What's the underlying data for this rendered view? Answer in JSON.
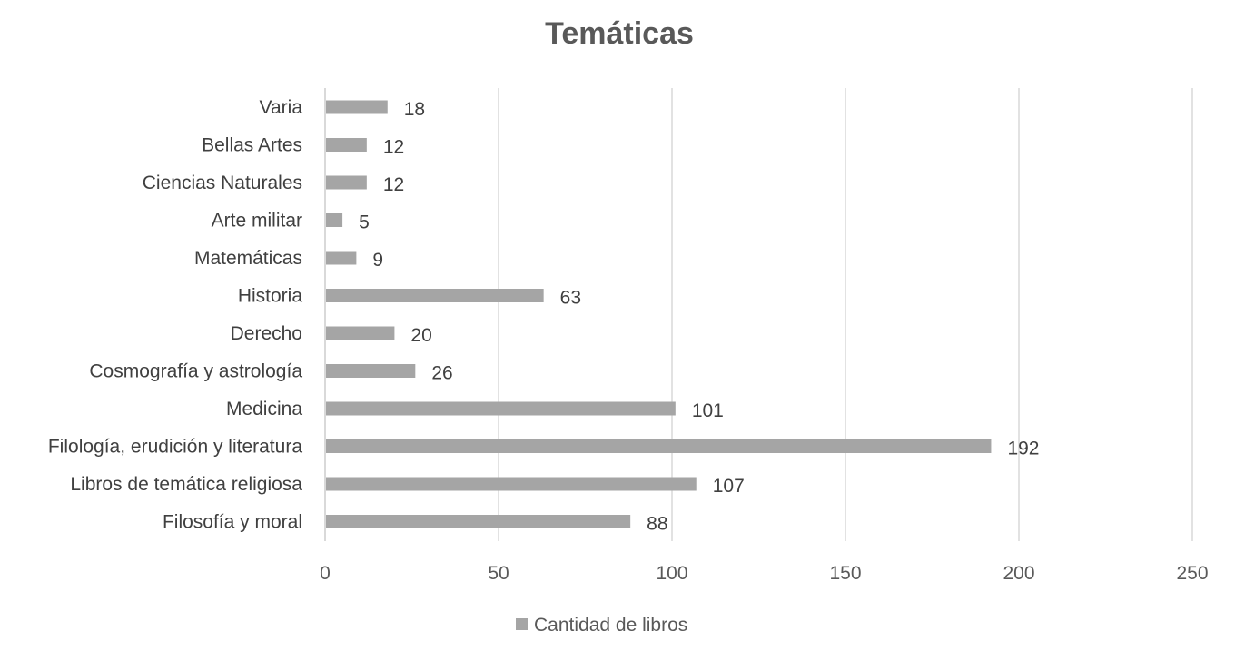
{
  "chart_data": {
    "type": "bar",
    "orientation": "horizontal",
    "title": "Temáticas",
    "categories": [
      "Varia",
      "Bellas Artes",
      "Ciencias Naturales",
      "Arte militar",
      "Matemáticas",
      "Historia",
      "Derecho",
      "Cosmografía y astrología",
      "Medicina",
      "Filología, erudición y literatura",
      "Libros de temática religiosa",
      "Filosofía y moral"
    ],
    "series": [
      {
        "name": "Cantidad de libros",
        "values": [
          18,
          12,
          12,
          5,
          9,
          63,
          20,
          26,
          101,
          192,
          107,
          88
        ]
      }
    ],
    "xlim": [
      0,
      250
    ],
    "xticks": [
      0,
      50,
      100,
      150,
      200,
      250
    ],
    "grid": true,
    "legend": "bottom",
    "bar_color": "#a5a5a5",
    "grid_color": "#d9d9d9"
  }
}
